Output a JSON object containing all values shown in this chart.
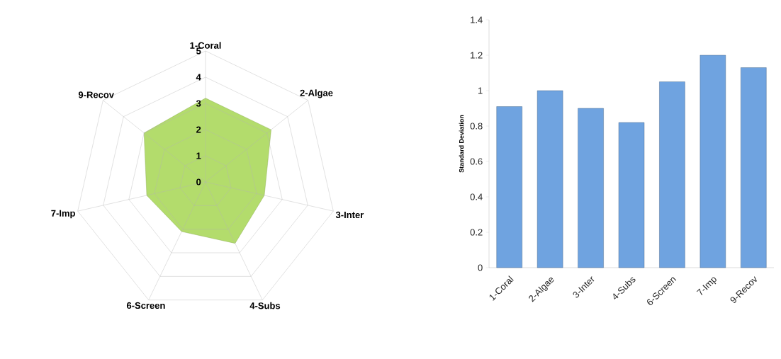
{
  "chart_data": [
    {
      "type": "radar",
      "categories": [
        "1-Coral",
        "2-Algae",
        "3-Inter",
        "4-Subs",
        "6-Screen",
        "7-Imp",
        "9-Recov"
      ],
      "series": [
        {
          "color": "#b3dc6c",
          "values": [
            3.2,
            3.2,
            2.3,
            2.6,
            2.1,
            2.3,
            3.0
          ]
        }
      ],
      "ylim": [
        0,
        5
      ],
      "yticks": [
        0,
        1,
        2,
        3,
        4,
        5
      ]
    },
    {
      "type": "bar",
      "categories": [
        "1-Coral",
        "2-Algae",
        "3-Inter",
        "4-Subs",
        "6-Screen",
        "7-Imp",
        "9-Recov"
      ],
      "values": [
        0.91,
        1.0,
        0.9,
        0.82,
        1.05,
        1.2,
        1.13
      ],
      "color": "#6fa3e0",
      "ylabel": "Standard Deviation",
      "ylim": [
        0,
        1.4
      ],
      "yticks": [
        0,
        0.2,
        0.4,
        0.6,
        0.8,
        1,
        1.2,
        1.4
      ]
    }
  ]
}
